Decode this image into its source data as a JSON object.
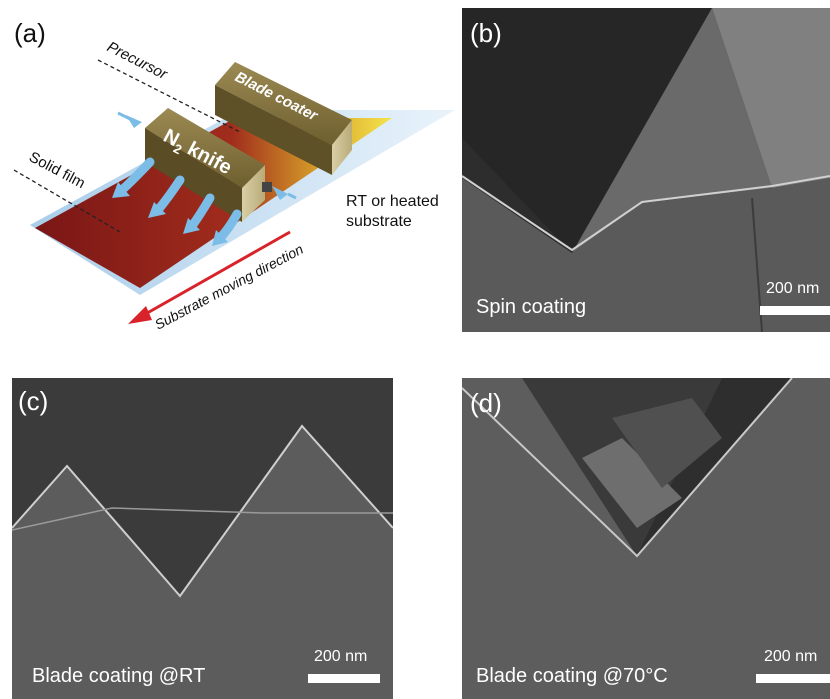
{
  "panels": {
    "a": {
      "label": "(a)",
      "precursor": "Precursor",
      "blade_coater": "Blade coater",
      "n2_knife_main": "N",
      "n2_knife_sub": "2",
      "n2_knife_rest": " knife",
      "solid_film": "Solid film",
      "substrate_line1": "RT or heated",
      "substrate_line2": "substrate",
      "direction": "Substrate moving direction"
    },
    "b": {
      "label": "(b)",
      "caption": "Spin coating",
      "scale": "200 nm"
    },
    "c": {
      "label": "(c)",
      "caption": "Blade coating @RT",
      "scale": "200 nm"
    },
    "d": {
      "label": "(d)",
      "caption": "Blade coating @70°C",
      "scale": "200 nm"
    }
  },
  "colors": {
    "film": "#8a1a1a",
    "precursor": "#f2e24a",
    "substrate": "#cfe4f5",
    "knife": "#7a6a3a",
    "arrow": "#d8232a",
    "airflow": "#7bbde6",
    "sem_dark": "#2b2b2b",
    "sem_light": "#8a8a8a"
  }
}
